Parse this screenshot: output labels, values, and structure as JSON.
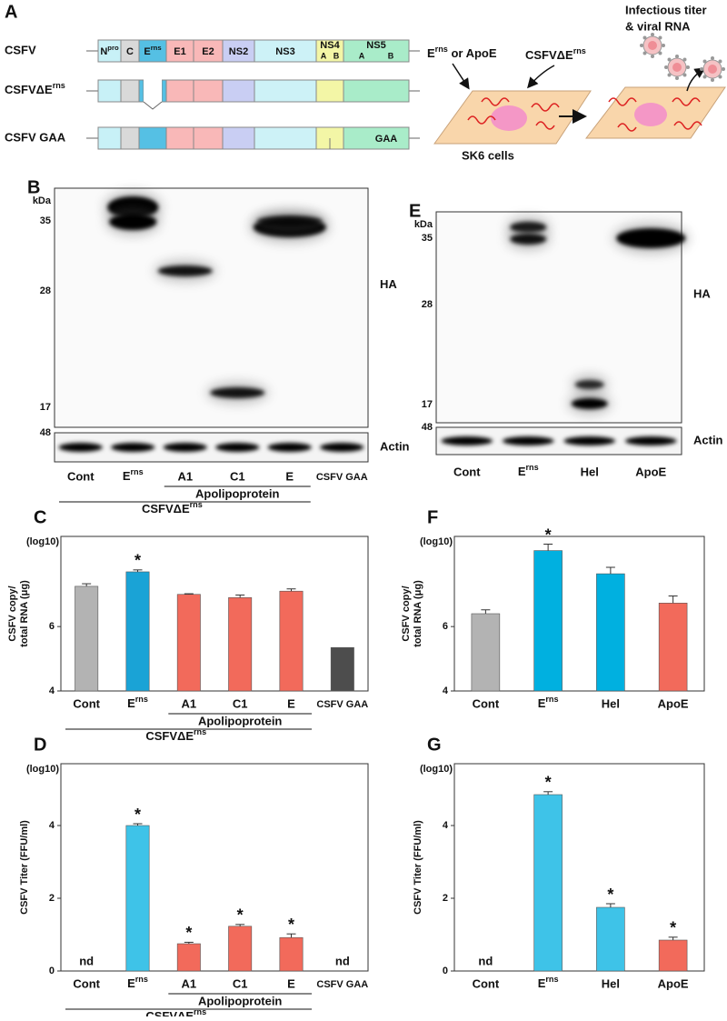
{
  "diagram": {
    "panel_label": "A",
    "constructs": [
      "CSFV",
      {
        "text": "CSFVΔE",
        "sup": "rns"
      },
      "CSFV GAA"
    ],
    "segments": [
      {
        "text": "N",
        "sup": "pro"
      },
      "C",
      {
        "text": "E",
        "sup": "rns"
      },
      "E1",
      "E2",
      "NS2",
      "NS3",
      "NS4",
      "NS5"
    ],
    "subunits": [
      "A",
      "B",
      "A",
      "B"
    ],
    "mutation": "GAA",
    "inputs": {
      "text": "E",
      "sup": "rns",
      "after": " or ApoE"
    },
    "virus": {
      "text": "CSFVΔE",
      "sup": "rns"
    },
    "cells": "SK6 cells",
    "readout": [
      "Infectious titer",
      "& viral RNA"
    ]
  },
  "blots": [
    {
      "panel_label": "B",
      "unit": "kDa",
      "markers": [
        35,
        28,
        17
      ],
      "antibody": "HA",
      "loading_marker": 48,
      "loading": "Actin",
      "lanes": [
        "Cont",
        {
          "text": "E",
          "sup": "rns"
        },
        "A1",
        "C1",
        "E",
        "CSFV GAA"
      ],
      "group_labels": [
        "Apolipoprotein",
        {
          "text": "CSFVΔE",
          "sup": "rns"
        }
      ]
    },
    {
      "panel_label": "E",
      "unit": "kDa",
      "markers": [
        35,
        28,
        17
      ],
      "antibody": "HA",
      "loading_marker": 48,
      "loading": "Actin",
      "lanes": [
        "Cont",
        {
          "text": "E",
          "sup": "rns"
        },
        "Hel",
        "ApoE"
      ]
    }
  ],
  "chart_data": [
    {
      "type": "bar",
      "panel_label": "C",
      "y_unit": "(log10)",
      "ylabel": [
        "CSFV copy/",
        "total RNA (μg)"
      ],
      "categories": [
        "Cont",
        {
          "text": "E",
          "sup": "rns"
        },
        "A1",
        "C1",
        "E",
        "CSFV GAA"
      ],
      "values": [
        7.25,
        7.7,
        7.0,
        6.9,
        7.1,
        5.35
      ],
      "errors": [
        0.08,
        0.06,
        0.02,
        0.08,
        0.07,
        null
      ],
      "colors": [
        "#b3b3b3",
        "#1aa3d6",
        "#f26a5b",
        "#f26a5b",
        "#f26a5b",
        "#4d4d4d"
      ],
      "significance": [
        null,
        "*",
        null,
        null,
        null,
        null
      ],
      "group_labels": [
        "Apolipoprotein",
        {
          "text": "CSFVΔE",
          "sup": "rns"
        }
      ],
      "ylim": [
        4,
        8.8
      ],
      "yticks": [
        4,
        6
      ]
    },
    {
      "type": "bar",
      "panel_label": "D",
      "y_unit": "(log10)",
      "ylabel": [
        "CSFV Titer (FFU/ml)"
      ],
      "categories": [
        "Cont",
        {
          "text": "E",
          "sup": "rns"
        },
        "A1",
        "C1",
        "E",
        "CSFV GAA"
      ],
      "values": [
        null,
        4.0,
        0.75,
        1.23,
        0.92,
        null
      ],
      "value_labels": [
        "nd",
        null,
        null,
        null,
        null,
        "nd"
      ],
      "errors": [
        null,
        0.05,
        0.04,
        0.05,
        0.1,
        null
      ],
      "colors": [
        "#b3b3b3",
        "#3ec3e8",
        "#f26a5b",
        "#f26a5b",
        "#f26a5b",
        "#4d4d4d"
      ],
      "significance": [
        null,
        "*",
        "*",
        "*",
        "*",
        null
      ],
      "group_labels": [
        "Apolipoprotein",
        {
          "text": "CSFVΔE",
          "sup": "rns"
        }
      ],
      "ylim": [
        0,
        5.7
      ],
      "yticks": [
        0,
        2,
        4
      ]
    },
    {
      "type": "bar",
      "panel_label": "F",
      "y_unit": "(log10)",
      "ylabel": [
        "CSFV copy/",
        "total RNA (μg)"
      ],
      "categories": [
        "Cont",
        {
          "text": "E",
          "sup": "rns"
        },
        "Hel",
        "ApoE"
      ],
      "values": [
        6.4,
        8.36,
        7.64,
        6.73
      ],
      "errors": [
        0.12,
        0.2,
        0.2,
        0.22
      ],
      "colors": [
        "#b3b3b3",
        "#00b0e0",
        "#00b0e0",
        "#f26a5b"
      ],
      "significance": [
        null,
        "*",
        null,
        null
      ],
      "ylim": [
        4,
        8.8
      ],
      "yticks": [
        4,
        6
      ]
    },
    {
      "type": "bar",
      "panel_label": "G",
      "y_unit": "(log10)",
      "ylabel": [
        "CSFV Titer (FFU/ml)"
      ],
      "categories": [
        "Cont",
        {
          "text": "E",
          "sup": "rns"
        },
        "Hel",
        "ApoE"
      ],
      "values": [
        null,
        4.85,
        1.75,
        0.85
      ],
      "value_labels": [
        "nd",
        null,
        null,
        null
      ],
      "errors": [
        null,
        0.08,
        0.1,
        0.08
      ],
      "colors": [
        "#b3b3b3",
        "#3ec3e8",
        "#3ec3e8",
        "#f26a5b"
      ],
      "significance": [
        null,
        "*",
        "*",
        "*"
      ],
      "ylim": [
        0,
        5.7
      ],
      "yticks": [
        0,
        2,
        4
      ]
    }
  ]
}
